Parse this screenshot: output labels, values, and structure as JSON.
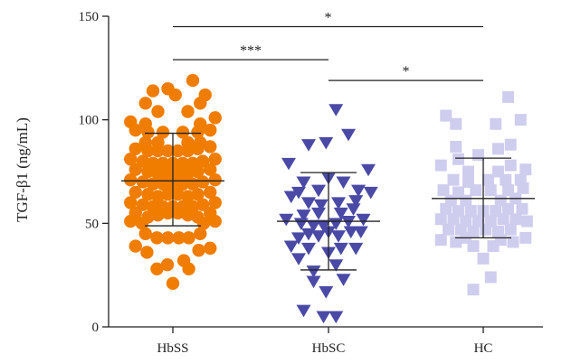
{
  "chart_data": {
    "type": "scatter",
    "title": "",
    "xlabel": "",
    "ylabel": "TGF-β1 (ng/mL)",
    "ylim": [
      0,
      150
    ],
    "yticks": [
      0,
      50,
      100,
      150
    ],
    "categories": [
      "HbSS",
      "HbSC",
      "HC"
    ],
    "grid": false,
    "colors": {
      "HbSS": "#f07d00",
      "HbSC": "#4a4aa6",
      "HC": "#cfcdee",
      "axis": "#222222"
    },
    "markers": {
      "HbSS": "circle",
      "HbSC": "triangle-down",
      "HC": "square"
    },
    "series": [
      {
        "category": "HbSS",
        "mean": 70.5,
        "sd_low": 48.8,
        "sd_high": 93.5,
        "points": [
          {
            "dx": 0.0,
            "y": 21
          },
          {
            "dx": -0.32,
            "y": 28
          },
          {
            "dx": 0.32,
            "y": 28
          },
          {
            "dx": -0.11,
            "y": 30
          },
          {
            "dx": 0.22,
            "y": 32
          },
          {
            "dx": -0.52,
            "y": 36
          },
          {
            "dx": 0.52,
            "y": 37
          },
          {
            "dx": -0.75,
            "y": 39
          },
          {
            "dx": 0.75,
            "y": 38
          },
          {
            "dx": -0.32,
            "y": 43
          },
          {
            "dx": -0.1,
            "y": 43
          },
          {
            "dx": 0.12,
            "y": 43
          },
          {
            "dx": 0.32,
            "y": 43
          },
          {
            "dx": -0.55,
            "y": 45
          },
          {
            "dx": 0.55,
            "y": 45
          },
          {
            "dx": -0.85,
            "y": 51
          },
          {
            "dx": -0.62,
            "y": 50
          },
          {
            "dx": 0.62,
            "y": 50
          },
          {
            "dx": 0.85,
            "y": 51
          },
          {
            "dx": -0.75,
            "y": 55
          },
          {
            "dx": -0.5,
            "y": 53
          },
          {
            "dx": -0.3,
            "y": 54
          },
          {
            "dx": -0.1,
            "y": 55
          },
          {
            "dx": 0.1,
            "y": 55
          },
          {
            "dx": 0.3,
            "y": 54
          },
          {
            "dx": 0.5,
            "y": 53
          },
          {
            "dx": 0.75,
            "y": 55
          },
          {
            "dx": -0.85,
            "y": 60
          },
          {
            "dx": -0.6,
            "y": 59
          },
          {
            "dx": -0.4,
            "y": 58
          },
          {
            "dx": -0.2,
            "y": 58
          },
          {
            "dx": 0.0,
            "y": 58
          },
          {
            "dx": 0.2,
            "y": 58
          },
          {
            "dx": 0.4,
            "y": 58
          },
          {
            "dx": 0.6,
            "y": 59
          },
          {
            "dx": 0.85,
            "y": 60
          },
          {
            "dx": -0.75,
            "y": 65
          },
          {
            "dx": -0.5,
            "y": 64
          },
          {
            "dx": -0.3,
            "y": 63
          },
          {
            "dx": -0.1,
            "y": 64
          },
          {
            "dx": 0.1,
            "y": 64
          },
          {
            "dx": 0.3,
            "y": 63
          },
          {
            "dx": 0.5,
            "y": 64
          },
          {
            "dx": 0.75,
            "y": 65
          },
          {
            "dx": -0.85,
            "y": 71
          },
          {
            "dx": -0.6,
            "y": 70
          },
          {
            "dx": -0.4,
            "y": 69
          },
          {
            "dx": -0.2,
            "y": 69
          },
          {
            "dx": 0.0,
            "y": 69
          },
          {
            "dx": 0.2,
            "y": 69
          },
          {
            "dx": 0.4,
            "y": 69
          },
          {
            "dx": 0.6,
            "y": 70
          },
          {
            "dx": 0.85,
            "y": 71
          },
          {
            "dx": -0.75,
            "y": 76
          },
          {
            "dx": -0.5,
            "y": 75
          },
          {
            "dx": -0.3,
            "y": 74
          },
          {
            "dx": -0.1,
            "y": 74
          },
          {
            "dx": 0.1,
            "y": 74
          },
          {
            "dx": 0.3,
            "y": 74
          },
          {
            "dx": 0.5,
            "y": 75
          },
          {
            "dx": 0.75,
            "y": 76
          },
          {
            "dx": -0.85,
            "y": 81
          },
          {
            "dx": -0.6,
            "y": 80
          },
          {
            "dx": -0.4,
            "y": 79
          },
          {
            "dx": -0.2,
            "y": 79
          },
          {
            "dx": 0.0,
            "y": 79
          },
          {
            "dx": 0.2,
            "y": 79
          },
          {
            "dx": 0.4,
            "y": 79
          },
          {
            "dx": 0.6,
            "y": 80
          },
          {
            "dx": 0.85,
            "y": 81
          },
          {
            "dx": -0.75,
            "y": 86
          },
          {
            "dx": -0.5,
            "y": 85
          },
          {
            "dx": -0.3,
            "y": 85
          },
          {
            "dx": -0.1,
            "y": 85
          },
          {
            "dx": 0.1,
            "y": 85
          },
          {
            "dx": 0.3,
            "y": 85
          },
          {
            "dx": 0.5,
            "y": 86
          },
          {
            "dx": 0.75,
            "y": 87
          },
          {
            "dx": -0.55,
            "y": 89
          },
          {
            "dx": -0.3,
            "y": 89
          },
          {
            "dx": 0.3,
            "y": 89
          },
          {
            "dx": 0.55,
            "y": 89
          },
          {
            "dx": -0.75,
            "y": 95
          },
          {
            "dx": -0.5,
            "y": 94
          },
          {
            "dx": -0.2,
            "y": 94
          },
          {
            "dx": 0.2,
            "y": 94
          },
          {
            "dx": 0.5,
            "y": 94
          },
          {
            "dx": 0.75,
            "y": 95
          },
          {
            "dx": -0.85,
            "y": 99
          },
          {
            "dx": -0.55,
            "y": 98
          },
          {
            "dx": 0.55,
            "y": 98
          },
          {
            "dx": 0.85,
            "y": 101
          },
          {
            "dx": -0.3,
            "y": 104
          },
          {
            "dx": 0.3,
            "y": 104
          },
          {
            "dx": -0.55,
            "y": 108
          },
          {
            "dx": 0.55,
            "y": 108
          },
          {
            "dx": 0.05,
            "y": 112
          },
          {
            "dx": 0.65,
            "y": 112
          },
          {
            "dx": -0.4,
            "y": 114
          },
          {
            "dx": -0.1,
            "y": 115
          },
          {
            "dx": 0.4,
            "y": 119
          }
        ]
      },
      {
        "category": "HbSC",
        "mean": 51.0,
        "sd_low": 27.5,
        "sd_high": 74.5,
        "points": [
          {
            "dx": -0.5,
            "y": 8
          },
          {
            "dx": -0.1,
            "y": 5
          },
          {
            "dx": 0.15,
            "y": 5
          },
          {
            "dx": -0.05,
            "y": 17
          },
          {
            "dx": -0.3,
            "y": 22
          },
          {
            "dx": 0.3,
            "y": 23
          },
          {
            "dx": -0.3,
            "y": 27
          },
          {
            "dx": 0.15,
            "y": 30
          },
          {
            "dx": -0.6,
            "y": 33
          },
          {
            "dx": 0.0,
            "y": 36
          },
          {
            "dx": -0.75,
            "y": 39
          },
          {
            "dx": -0.4,
            "y": 38
          },
          {
            "dx": 0.25,
            "y": 38
          },
          {
            "dx": 0.55,
            "y": 38
          },
          {
            "dx": -0.6,
            "y": 43
          },
          {
            "dx": -0.4,
            "y": 45
          },
          {
            "dx": -0.2,
            "y": 44
          },
          {
            "dx": 0.0,
            "y": 46
          },
          {
            "dx": 0.2,
            "y": 44
          },
          {
            "dx": 0.45,
            "y": 46
          },
          {
            "dx": 0.65,
            "y": 46
          },
          {
            "dx": -0.85,
            "y": 52
          },
          {
            "dx": -0.55,
            "y": 50
          },
          {
            "dx": -0.3,
            "y": 49
          },
          {
            "dx": -0.1,
            "y": 49
          },
          {
            "dx": 0.15,
            "y": 50
          },
          {
            "dx": 0.4,
            "y": 51
          },
          {
            "dx": 0.7,
            "y": 52
          },
          {
            "dx": -0.5,
            "y": 54
          },
          {
            "dx": -0.2,
            "y": 55
          },
          {
            "dx": 0.25,
            "y": 55
          },
          {
            "dx": 0.5,
            "y": 57
          },
          {
            "dx": -0.75,
            "y": 63
          },
          {
            "dx": -0.4,
            "y": 60
          },
          {
            "dx": -0.15,
            "y": 59
          },
          {
            "dx": 0.2,
            "y": 60
          },
          {
            "dx": 0.55,
            "y": 61
          },
          {
            "dx": -0.6,
            "y": 65
          },
          {
            "dx": -0.2,
            "y": 66
          },
          {
            "dx": 0.6,
            "y": 66
          },
          {
            "dx": 0.85,
            "y": 65
          },
          {
            "dx": -0.5,
            "y": 70
          },
          {
            "dx": 0.3,
            "y": 70
          },
          {
            "dx": 0.0,
            "y": 72
          },
          {
            "dx": -0.8,
            "y": 79
          },
          {
            "dx": 0.8,
            "y": 76
          },
          {
            "dx": -0.4,
            "y": 88
          },
          {
            "dx": 0.4,
            "y": 93
          },
          {
            "dx": -0.05,
            "y": 89
          },
          {
            "dx": 0.15,
            "y": 105
          }
        ]
      },
      {
        "category": "HC",
        "mean": 62.0,
        "sd_low": 43.0,
        "sd_high": 81.5,
        "points": [
          {
            "dx": -0.2,
            "y": 18
          },
          {
            "dx": 0.15,
            "y": 24
          },
          {
            "dx": 0.0,
            "y": 33
          },
          {
            "dx": -0.2,
            "y": 39
          },
          {
            "dx": 0.2,
            "y": 39
          },
          {
            "dx": -0.55,
            "y": 41
          },
          {
            "dx": -0.35,
            "y": 43
          },
          {
            "dx": 0.35,
            "y": 42
          },
          {
            "dx": 0.6,
            "y": 41
          },
          {
            "dx": 0.85,
            "y": 43
          },
          {
            "dx": -0.85,
            "y": 42
          },
          {
            "dx": -0.7,
            "y": 47
          },
          {
            "dx": -0.45,
            "y": 47
          },
          {
            "dx": -0.2,
            "y": 46
          },
          {
            "dx": 0.05,
            "y": 47
          },
          {
            "dx": 0.3,
            "y": 46
          },
          {
            "dx": 0.55,
            "y": 47
          },
          {
            "dx": -0.85,
            "y": 52
          },
          {
            "dx": -0.6,
            "y": 52
          },
          {
            "dx": -0.35,
            "y": 51
          },
          {
            "dx": -0.1,
            "y": 51
          },
          {
            "dx": 0.15,
            "y": 51
          },
          {
            "dx": 0.4,
            "y": 52
          },
          {
            "dx": 0.65,
            "y": 52
          },
          {
            "dx": 0.88,
            "y": 51
          },
          {
            "dx": -0.75,
            "y": 57
          },
          {
            "dx": -0.5,
            "y": 56
          },
          {
            "dx": -0.25,
            "y": 56
          },
          {
            "dx": 0.0,
            "y": 56
          },
          {
            "dx": 0.25,
            "y": 56
          },
          {
            "dx": 0.5,
            "y": 57
          },
          {
            "dx": 0.78,
            "y": 57
          },
          {
            "dx": -0.65,
            "y": 61
          },
          {
            "dx": -0.35,
            "y": 61
          },
          {
            "dx": 0.35,
            "y": 61
          },
          {
            "dx": 0.65,
            "y": 62
          },
          {
            "dx": -0.8,
            "y": 66
          },
          {
            "dx": -0.5,
            "y": 65
          },
          {
            "dx": -0.15,
            "y": 66
          },
          {
            "dx": 0.15,
            "y": 66
          },
          {
            "dx": 0.5,
            "y": 66
          },
          {
            "dx": 0.8,
            "y": 67
          },
          {
            "dx": -0.6,
            "y": 71
          },
          {
            "dx": -0.3,
            "y": 70
          },
          {
            "dx": 0.1,
            "y": 71
          },
          {
            "dx": 0.45,
            "y": 71
          },
          {
            "dx": 0.75,
            "y": 71
          },
          {
            "dx": -0.3,
            "y": 75
          },
          {
            "dx": 0.3,
            "y": 75
          },
          {
            "dx": 0.85,
            "y": 76
          },
          {
            "dx": -0.85,
            "y": 78
          },
          {
            "dx": 0.55,
            "y": 78
          },
          {
            "dx": -0.5,
            "y": 81
          },
          {
            "dx": -0.1,
            "y": 83
          },
          {
            "dx": 0.3,
            "y": 86
          },
          {
            "dx": -0.55,
            "y": 87
          },
          {
            "dx": 0.55,
            "y": 88
          },
          {
            "dx": -0.55,
            "y": 98
          },
          {
            "dx": 0.25,
            "y": 98
          },
          {
            "dx": 0.75,
            "y": 100
          },
          {
            "dx": -0.75,
            "y": 102
          },
          {
            "dx": 0.5,
            "y": 111
          }
        ]
      }
    ],
    "significance": [
      {
        "from": "HbSS",
        "to": "HC",
        "label": "*",
        "level": 145
      },
      {
        "from": "HbSS",
        "to": "HbSC",
        "label": "***",
        "level": 129
      },
      {
        "from": "HbSC",
        "to": "HC",
        "label": "*",
        "level": 119
      }
    ]
  }
}
